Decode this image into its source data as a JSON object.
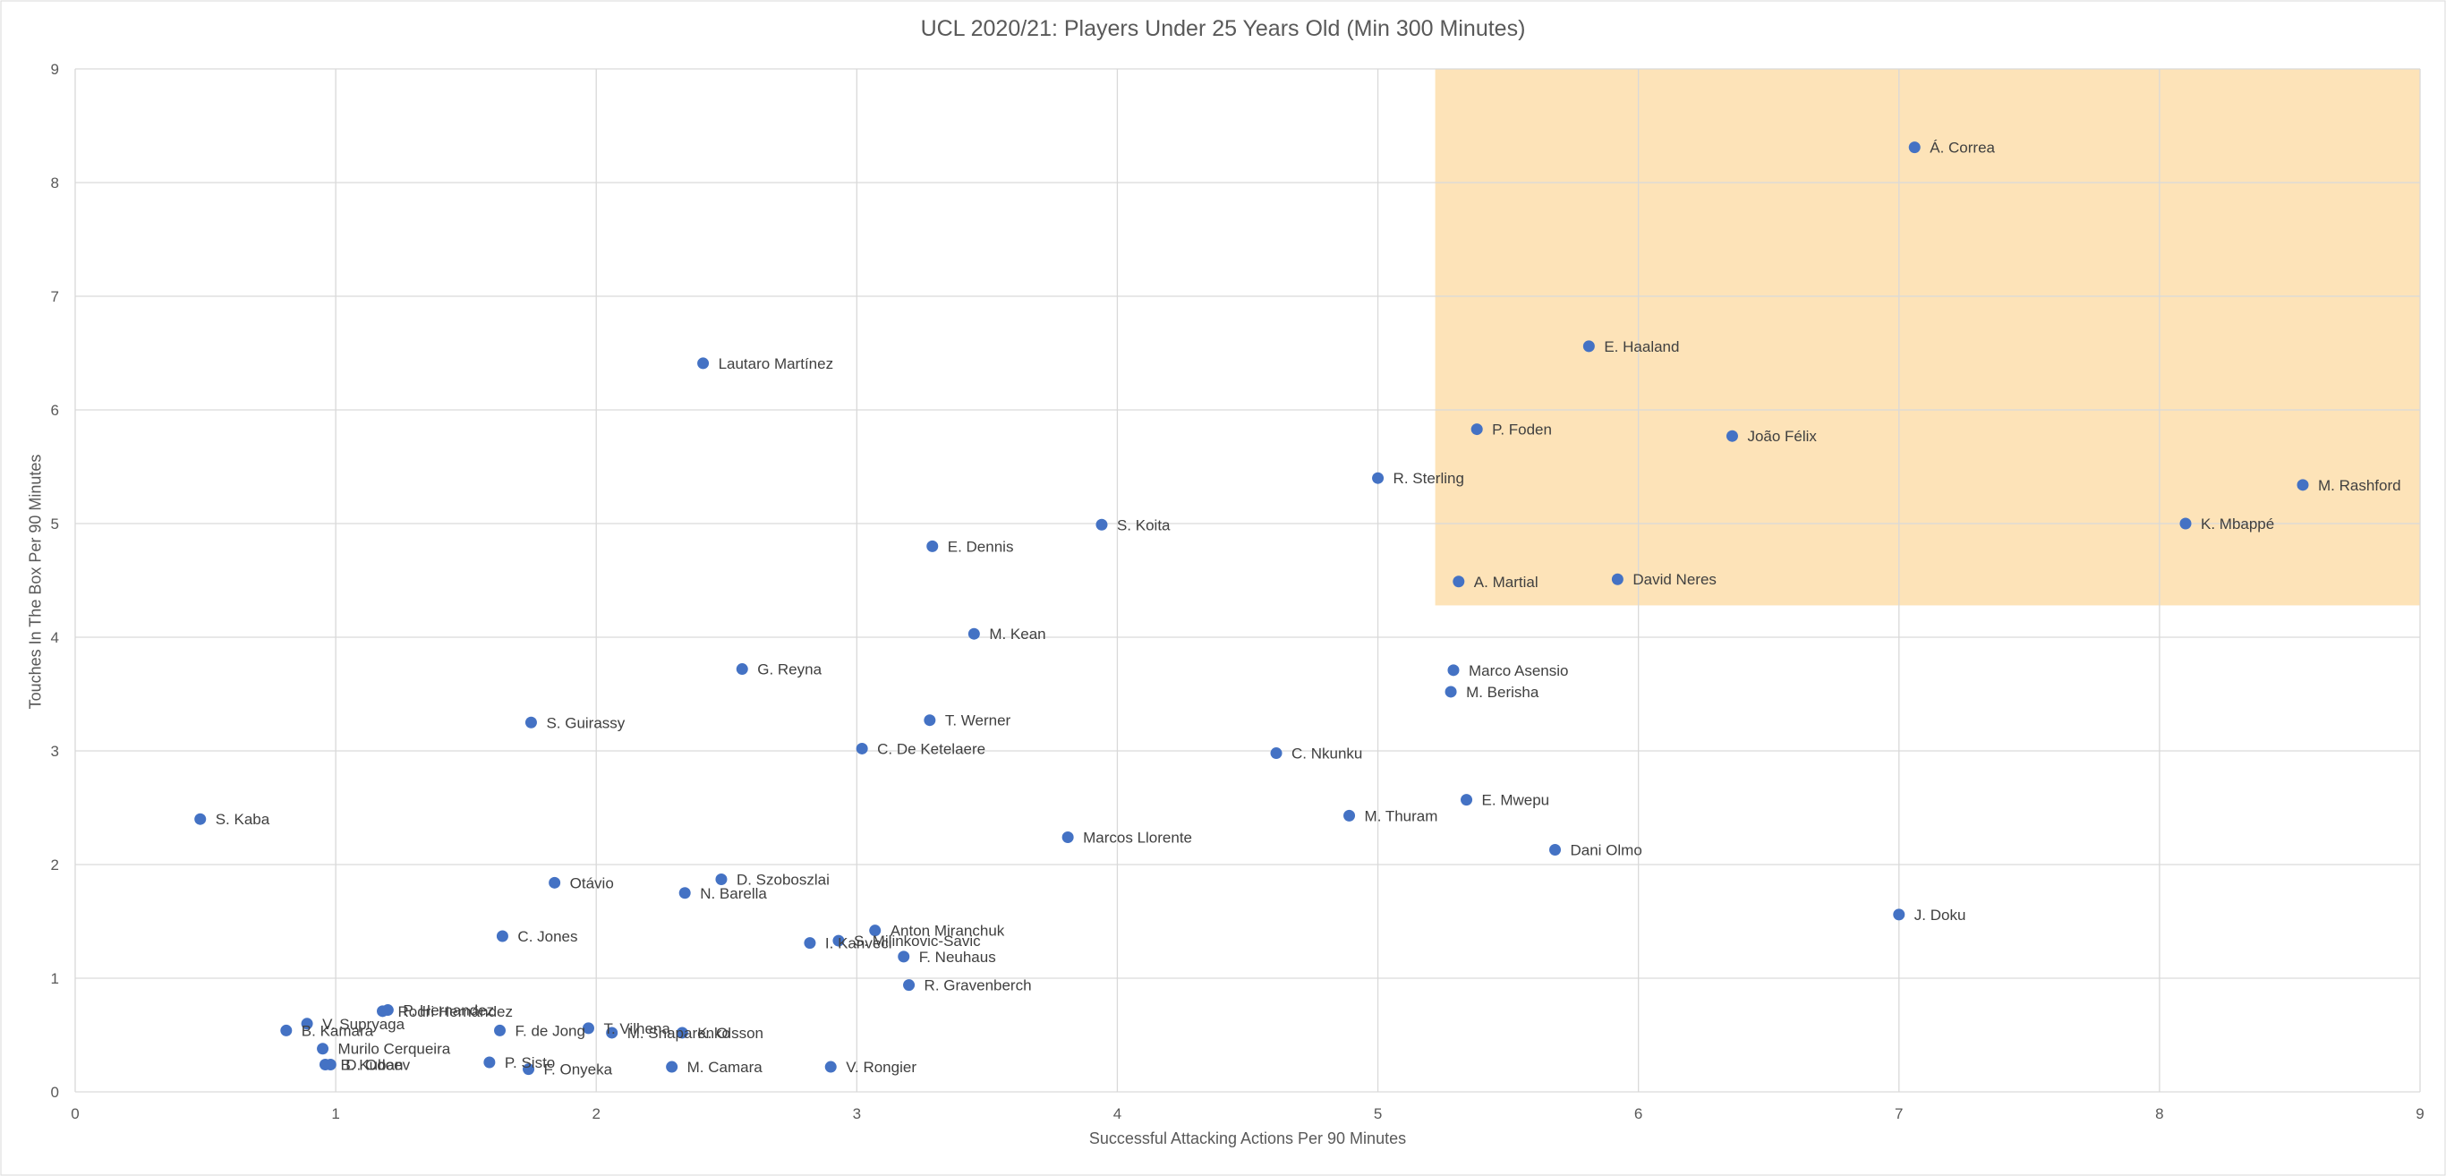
{
  "chart_data": {
    "type": "scatter",
    "title": "UCL 2020/21: Players Under 25 Years Old (Min 300 Minutes)",
    "xlabel": "Successful Attacking Actions Per 90 Minutes",
    "ylabel": "Touches In The Box Per 90 Minutes",
    "xlim": [
      0,
      9
    ],
    "ylim": [
      0,
      9
    ],
    "xticks": [
      "0",
      "1",
      "2",
      "3",
      "4",
      "5",
      "6",
      "7",
      "8",
      "9"
    ],
    "yticks": [
      "0",
      "1",
      "2",
      "3",
      "4",
      "5",
      "6",
      "7",
      "8",
      "9"
    ],
    "grid": true,
    "highlight_region": {
      "x": [
        5.22,
        9
      ],
      "y": [
        4.28,
        9
      ],
      "color": "#fde3b8"
    },
    "point_color": "#4472c4",
    "points": [
      {
        "label": "Á. Correa",
        "x": 7.06,
        "y": 8.31
      },
      {
        "label": "E. Haaland",
        "x": 5.81,
        "y": 6.56
      },
      {
        "label": "Lautaro Martínez",
        "x": 2.41,
        "y": 6.41
      },
      {
        "label": "P. Foden",
        "x": 5.38,
        "y": 5.83
      },
      {
        "label": "João Félix",
        "x": 6.36,
        "y": 5.77
      },
      {
        "label": "R. Sterling",
        "x": 5.0,
        "y": 5.4
      },
      {
        "label": "M. Rashford",
        "x": 8.55,
        "y": 5.34
      },
      {
        "label": "K. Mbappé",
        "x": 8.1,
        "y": 5.0
      },
      {
        "label": "S. Koita",
        "x": 3.94,
        "y": 4.99
      },
      {
        "label": "E. Dennis",
        "x": 3.29,
        "y": 4.8
      },
      {
        "label": "A. Martial",
        "x": 5.31,
        "y": 4.49
      },
      {
        "label": "David Neres",
        "x": 5.92,
        "y": 4.51
      },
      {
        "label": "M. Kean",
        "x": 3.45,
        "y": 4.03
      },
      {
        "label": "G. Reyna",
        "x": 2.56,
        "y": 3.72
      },
      {
        "label": "Marco Asensio",
        "x": 5.29,
        "y": 3.71
      },
      {
        "label": "M. Berisha",
        "x": 5.28,
        "y": 3.52
      },
      {
        "label": "T. Werner",
        "x": 3.28,
        "y": 3.27
      },
      {
        "label": "S. Guirassy",
        "x": 1.75,
        "y": 3.25
      },
      {
        "label": "C. De Ketelaere",
        "x": 3.02,
        "y": 3.02
      },
      {
        "label": "C. Nkunku",
        "x": 4.61,
        "y": 2.98
      },
      {
        "label": "E. Mwepu",
        "x": 5.34,
        "y": 2.57
      },
      {
        "label": "M. Thuram",
        "x": 4.89,
        "y": 2.43
      },
      {
        "label": "S. Kaba",
        "x": 0.48,
        "y": 2.4
      },
      {
        "label": "Marcos Llorente",
        "x": 3.81,
        "y": 2.24
      },
      {
        "label": "Dani Olmo",
        "x": 5.68,
        "y": 2.13
      },
      {
        "label": "D. Szoboszlai",
        "x": 2.48,
        "y": 1.87
      },
      {
        "label": "Otávio",
        "x": 1.84,
        "y": 1.84
      },
      {
        "label": "N. Barella",
        "x": 2.34,
        "y": 1.75
      },
      {
        "label": "J. Doku",
        "x": 7.0,
        "y": 1.56
      },
      {
        "label": "Anton Miranchuk",
        "x": 3.07,
        "y": 1.42
      },
      {
        "label": "C. Jones",
        "x": 1.64,
        "y": 1.37
      },
      {
        "label": "S. Milinkovic-Savic",
        "x": 2.93,
        "y": 1.33
      },
      {
        "label": "I. Kanveci",
        "x": 2.82,
        "y": 1.31
      },
      {
        "label": "F. Neuhaus",
        "x": 3.18,
        "y": 1.19
      },
      {
        "label": "R. Gravenberch",
        "x": 3.2,
        "y": 0.94
      },
      {
        "label": "P. Hernandez",
        "x": 1.2,
        "y": 0.72
      },
      {
        "label": "Rodri Hernández",
        "x": 1.18,
        "y": 0.71
      },
      {
        "label": "V. Supryaga",
        "x": 0.89,
        "y": 0.6
      },
      {
        "label": "T. Vilhena",
        "x": 1.97,
        "y": 0.56
      },
      {
        "label": "B. Kamara",
        "x": 0.81,
        "y": 0.54
      },
      {
        "label": "F. de Jong",
        "x": 1.63,
        "y": 0.54
      },
      {
        "label": "M. Shaparenko",
        "x": 2.06,
        "y": 0.52
      },
      {
        "label": "K. Olsson",
        "x": 2.33,
        "y": 0.52
      },
      {
        "label": "Murilo Cerqueira",
        "x": 0.95,
        "y": 0.38
      },
      {
        "label": "P. Sisto",
        "x": 1.59,
        "y": 0.26
      },
      {
        "label": "B. Kuban",
        "x": 0.96,
        "y": 0.24
      },
      {
        "label": "D. Odoev",
        "x": 0.98,
        "y": 0.24
      },
      {
        "label": "F. Onyeka",
        "x": 1.74,
        "y": 0.2
      },
      {
        "label": "M. Camara",
        "x": 2.29,
        "y": 0.22
      },
      {
        "label": "V. Rongier",
        "x": 2.9,
        "y": 0.22
      }
    ]
  }
}
